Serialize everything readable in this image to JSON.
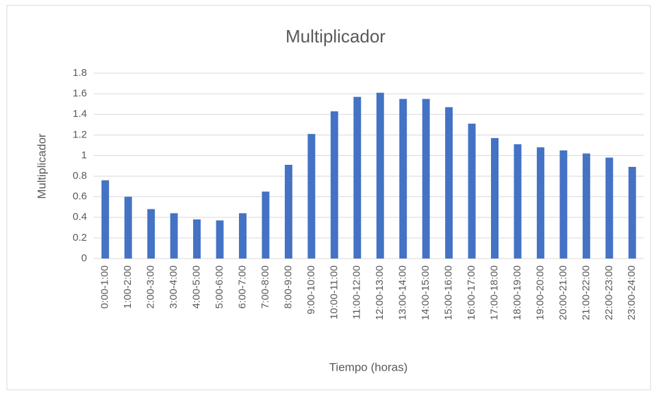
{
  "chart_data": {
    "type": "bar",
    "title": "Multiplicador",
    "x_label": "Tiempo (horas)",
    "y_label": "Multiplicador",
    "categories": [
      "0:00-1:00",
      "1:00-2:00",
      "2:00-3:00",
      "3:00-4:00",
      "4:00-5:00",
      "5:00-6:00",
      "6:00-7:00",
      "7:00-8:00",
      "8:00-9:00",
      "9:00-10:00",
      "10:00-11:00",
      "11:00-12:00",
      "12:00-13:00",
      "13:00-14:00",
      "14:00-15:00",
      "15:00-16:00",
      "16:00-17:00",
      "17:00-18:00",
      "18:00-19:00",
      "19:00-20:00",
      "20:00-21:00",
      "21:00-22:00",
      "22:00-23:00",
      "23:00-24:00"
    ],
    "values": [
      0.76,
      0.6,
      0.48,
      0.44,
      0.38,
      0.37,
      0.44,
      0.65,
      0.91,
      1.21,
      1.43,
      1.57,
      1.61,
      1.55,
      1.55,
      1.47,
      1.31,
      1.17,
      1.11,
      1.08,
      1.05,
      1.02,
      0.98,
      0.89
    ],
    "color": "#4472c4",
    "ylim": [
      0,
      1.8
    ],
    "yticks": [
      0,
      0.2,
      0.4,
      0.6,
      0.8,
      1,
      1.2,
      1.4,
      1.6,
      1.8
    ],
    "grid": true
  }
}
